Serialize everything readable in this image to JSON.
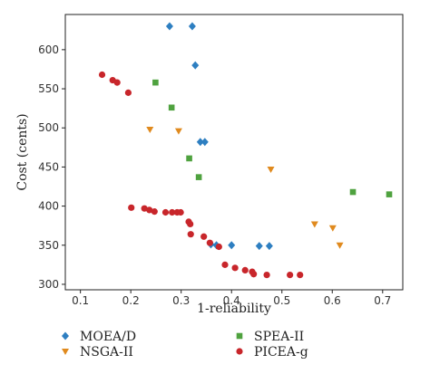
{
  "chart_data": {
    "type": "scatter",
    "xlabel": "1-reliability",
    "ylabel": "Cost (cents)",
    "xlim": [
      0.07,
      0.74
    ],
    "ylim": [
      293,
      645
    ],
    "xticks": [
      "0.1",
      "0.2",
      "0.3",
      "0.4",
      "0.5",
      "0.6",
      "0.7"
    ],
    "yticks": [
      "300",
      "350",
      "400",
      "450",
      "500",
      "550",
      "600"
    ],
    "grid": false,
    "legend_position": "bottom",
    "series": [
      {
        "name": "MOEA/D",
        "marker": "diamond",
        "color": "#2e7fc1",
        "points": [
          [
            0.277,
            630
          ],
          [
            0.322,
            630
          ],
          [
            0.328,
            580
          ],
          [
            0.338,
            482
          ],
          [
            0.347,
            482
          ],
          [
            0.359,
            351
          ],
          [
            0.37,
            350
          ],
          [
            0.4,
            350
          ],
          [
            0.455,
            349
          ],
          [
            0.475,
            349
          ]
        ]
      },
      {
        "name": "SPEA-II",
        "marker": "square",
        "color": "#4fa23f",
        "points": [
          [
            0.249,
            558
          ],
          [
            0.281,
            526
          ],
          [
            0.316,
            461
          ],
          [
            0.335,
            437
          ],
          [
            0.641,
            418
          ],
          [
            0.713,
            415
          ]
        ]
      },
      {
        "name": "NSGA-II",
        "marker": "triangle-down",
        "color": "#e08a1e",
        "points": [
          [
            0.238,
            498
          ],
          [
            0.295,
            496
          ],
          [
            0.478,
            447
          ],
          [
            0.565,
            377
          ],
          [
            0.601,
            372
          ],
          [
            0.615,
            350
          ]
        ]
      },
      {
        "name": "PICEA-g",
        "marker": "circle",
        "color": "#c8262b",
        "points": [
          [
            0.143,
            568
          ],
          [
            0.164,
            561
          ],
          [
            0.173,
            558
          ],
          [
            0.195,
            545
          ],
          [
            0.201,
            398
          ],
          [
            0.227,
            397
          ],
          [
            0.237,
            395
          ],
          [
            0.247,
            393
          ],
          [
            0.269,
            392
          ],
          [
            0.282,
            392
          ],
          [
            0.292,
            392
          ],
          [
            0.299,
            392
          ],
          [
            0.315,
            380
          ],
          [
            0.318,
            377
          ],
          [
            0.319,
            364
          ],
          [
            0.345,
            361
          ],
          [
            0.357,
            353
          ],
          [
            0.375,
            348
          ],
          [
            0.387,
            325
          ],
          [
            0.407,
            321
          ],
          [
            0.427,
            318
          ],
          [
            0.441,
            316
          ],
          [
            0.444,
            313
          ],
          [
            0.47,
            312
          ],
          [
            0.516,
            312
          ],
          [
            0.536,
            312
          ]
        ]
      }
    ]
  }
}
